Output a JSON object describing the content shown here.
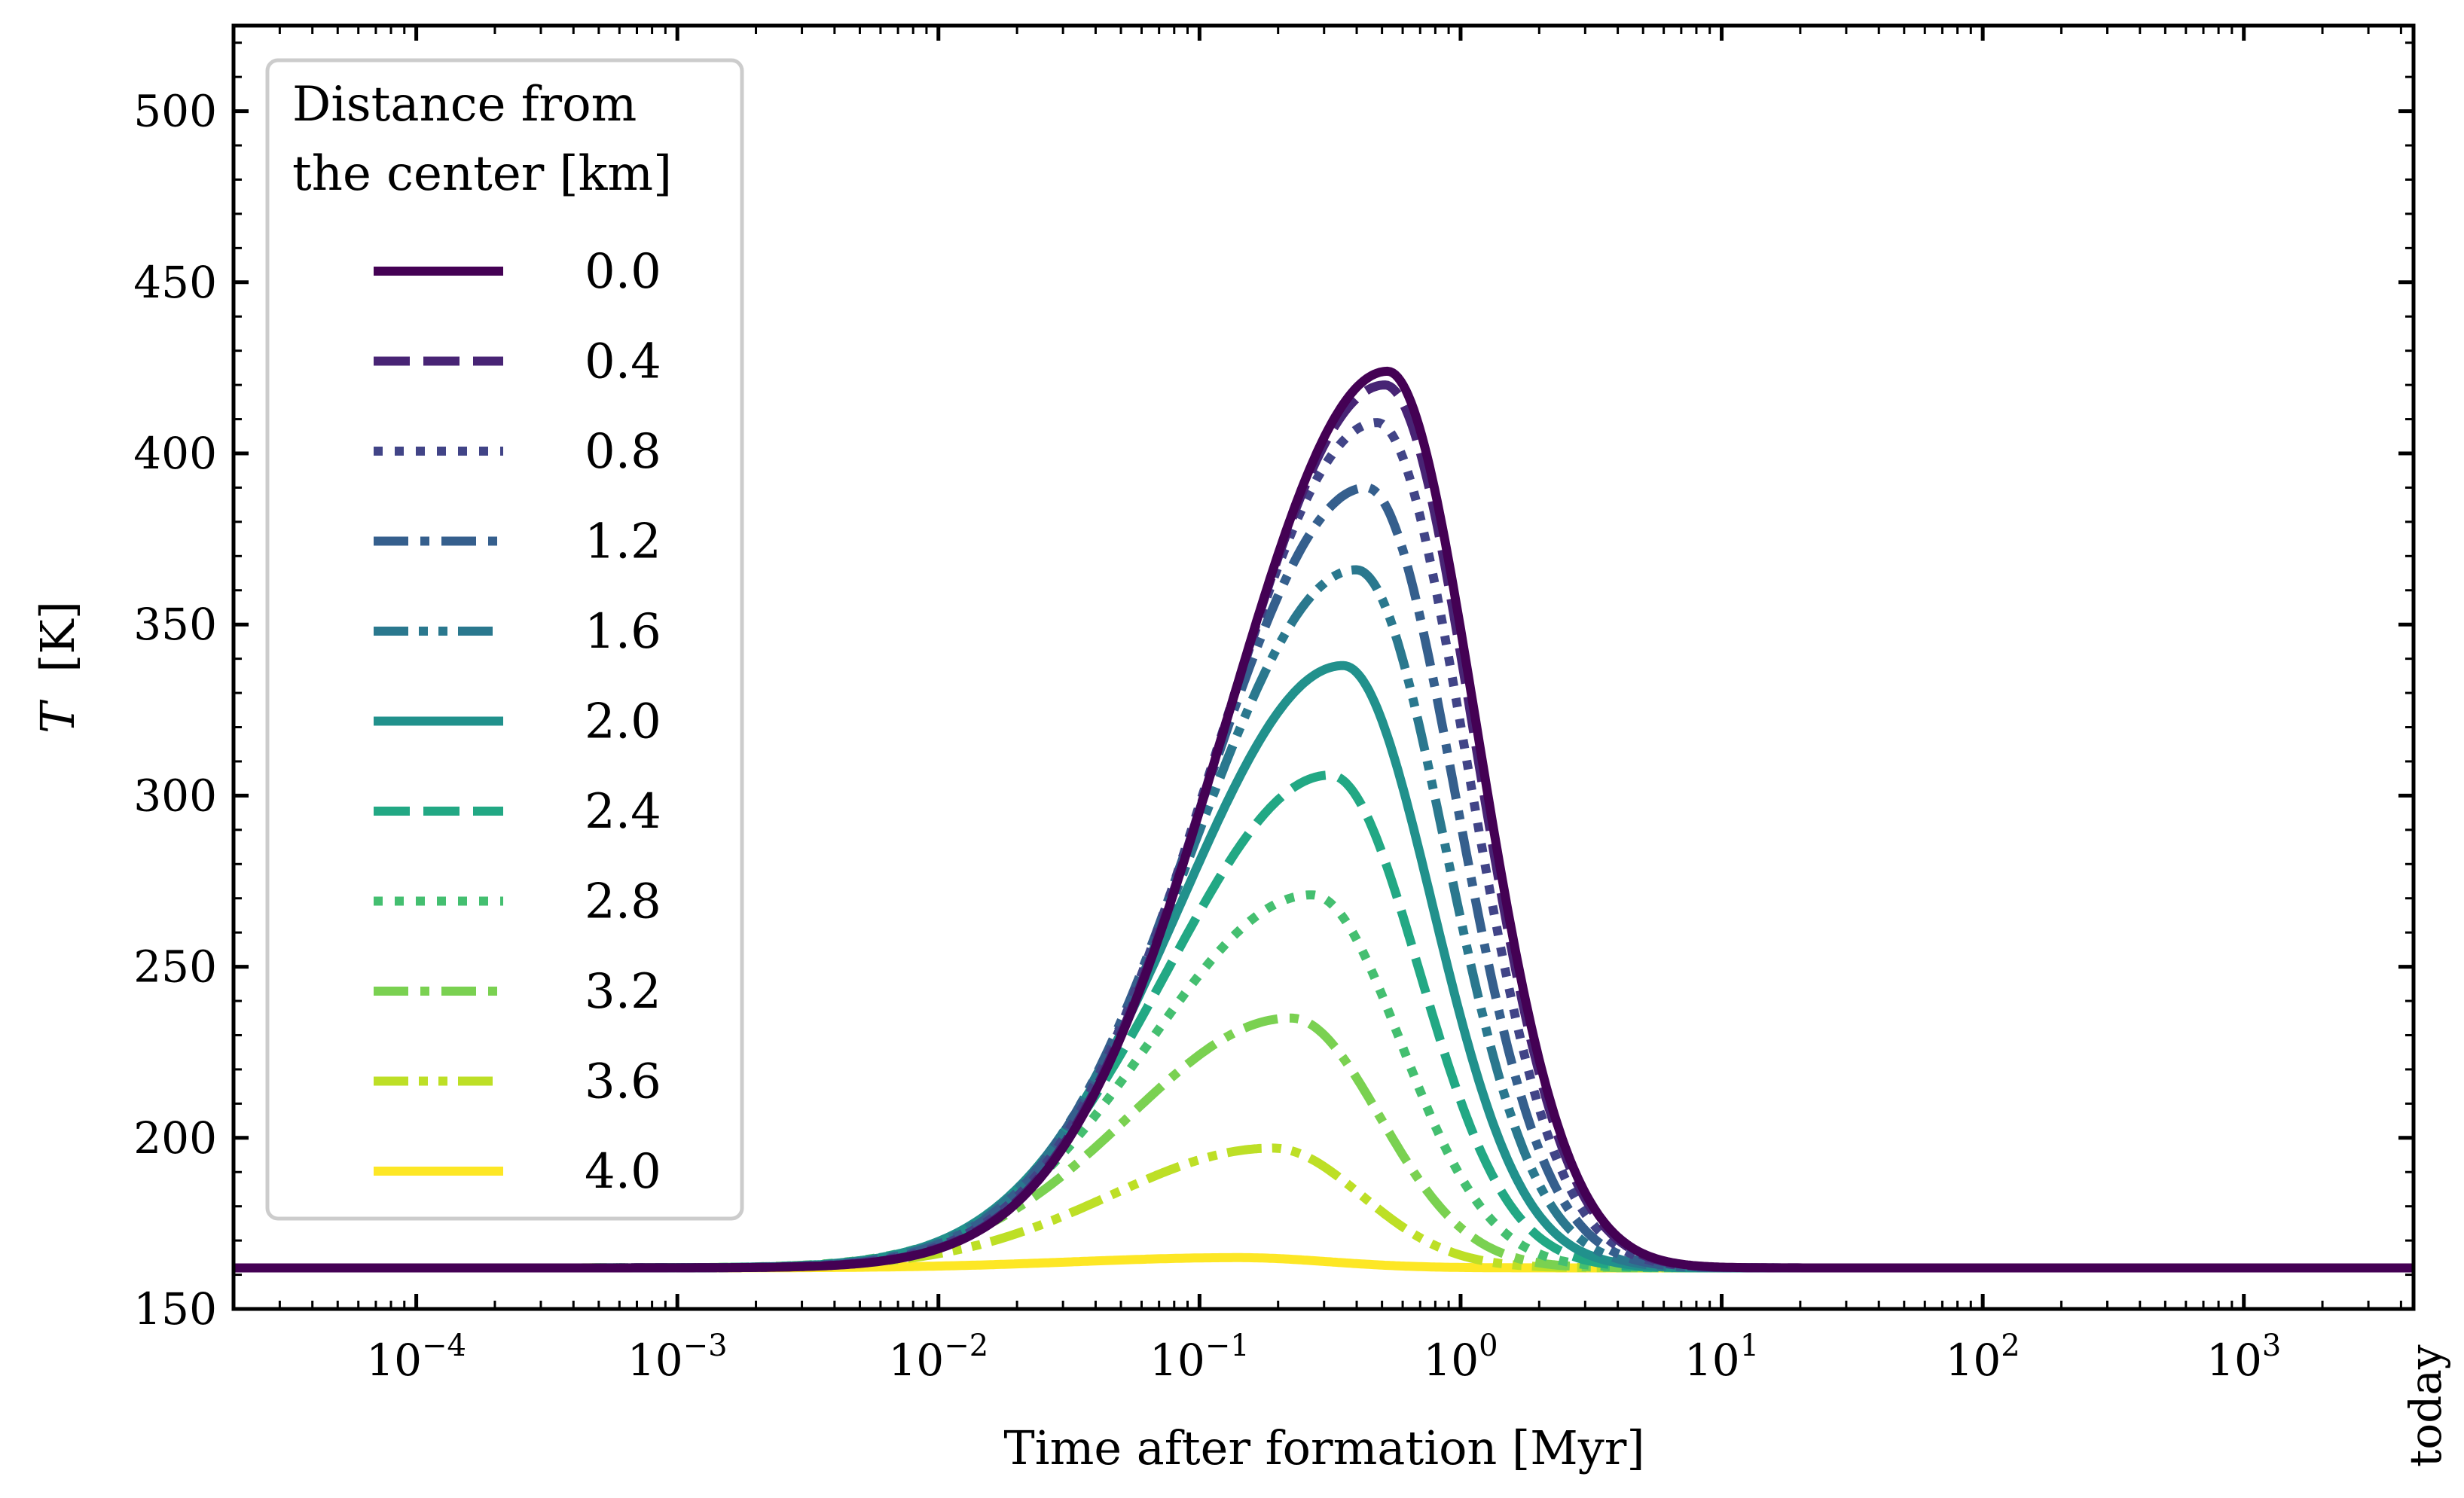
{
  "chart_data": {
    "type": "line",
    "xscale": "log",
    "xlabel": "Time after formation [Myr]",
    "ylabel_italic": "T",
    "ylabel_unit": "[K]",
    "ylim": [
      150,
      525
    ],
    "xlim_log10": [
      -4.7,
      3.65
    ],
    "x_ticks": [
      {
        "base": "10",
        "exp": "−4",
        "log": -4
      },
      {
        "base": "10",
        "exp": "−3",
        "log": -3
      },
      {
        "base": "10",
        "exp": "−2",
        "log": -2
      },
      {
        "base": "10",
        "exp": "−1",
        "log": -1
      },
      {
        "base": "10",
        "exp": "0",
        "log": 0
      },
      {
        "base": "10",
        "exp": "1",
        "log": 1
      },
      {
        "base": "10",
        "exp": "2",
        "log": 2
      },
      {
        "base": "10",
        "exp": "3",
        "log": 3
      }
    ],
    "x_end_label": "today",
    "y_ticks": [
      150,
      200,
      250,
      300,
      350,
      400,
      450,
      500
    ],
    "legend_title": [
      "Distance from",
      "the center [km]"
    ],
    "legend_position": "upper-left",
    "baseline_T": 162,
    "series": [
      {
        "name": "0.0",
        "peak_T": 424,
        "peak_log10_t": -0.28,
        "color": "#440154",
        "style": "solid"
      },
      {
        "name": "0.4",
        "peak_T": 420,
        "peak_log10_t": -0.29,
        "color": "#482475",
        "style": "dashed"
      },
      {
        "name": "0.8",
        "peak_T": 409,
        "peak_log10_t": -0.32,
        "color": "#414487",
        "style": "dotted"
      },
      {
        "name": "1.2",
        "peak_T": 390,
        "peak_log10_t": -0.36,
        "color": "#355f8d",
        "style": "dashdot"
      },
      {
        "name": "1.6",
        "peak_T": 366,
        "peak_log10_t": -0.4,
        "color": "#2a788e",
        "style": "dashdotdot"
      },
      {
        "name": "2.0",
        "peak_T": 338,
        "peak_log10_t": -0.45,
        "color": "#21918c",
        "style": "solid"
      },
      {
        "name": "2.4",
        "peak_T": 306,
        "peak_log10_t": -0.5,
        "color": "#22a884",
        "style": "dashed"
      },
      {
        "name": "2.8",
        "peak_T": 271,
        "peak_log10_t": -0.57,
        "color": "#44bf70",
        "style": "dotted"
      },
      {
        "name": "3.2",
        "peak_T": 235,
        "peak_log10_t": -0.65,
        "color": "#7ad151",
        "style": "dashdot"
      },
      {
        "name": "3.6",
        "peak_T": 197,
        "peak_log10_t": -0.72,
        "color": "#bddf26",
        "style": "dashdotdot"
      },
      {
        "name": "4.0",
        "peak_T": 165,
        "peak_log10_t": -0.85,
        "color": "#fde725",
        "style": "solid"
      }
    ]
  }
}
